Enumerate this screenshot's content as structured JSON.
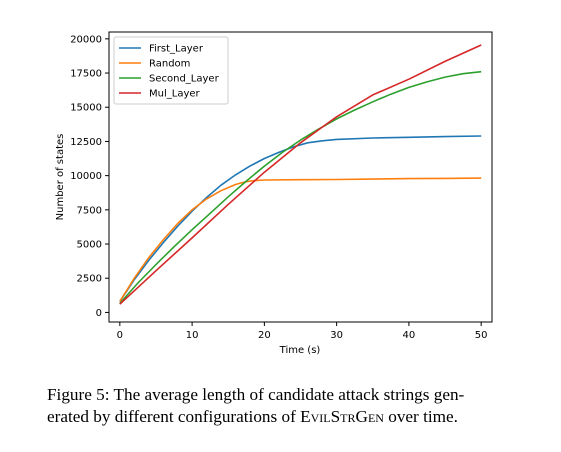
{
  "chart_data": {
    "type": "line",
    "title": "",
    "xlabel": "Time (s)",
    "ylabel": "Number of states",
    "xlim": [
      -1.5,
      51.5
    ],
    "ylim": [
      -700,
      20500
    ],
    "xticks": [
      0,
      10,
      20,
      30,
      40,
      50
    ],
    "yticks": [
      0,
      2500,
      5000,
      7500,
      10000,
      12500,
      15000,
      17500,
      20000
    ],
    "legend_position": "top-left",
    "grid": false,
    "series": [
      {
        "name": "First_Layer",
        "color": "#1f77b4",
        "x": [
          0,
          2,
          4,
          6,
          8,
          10,
          12,
          14,
          16,
          18,
          20,
          22,
          24,
          26,
          28,
          30,
          35,
          40,
          45,
          50
        ],
        "y": [
          800,
          2400,
          3800,
          5100,
          6300,
          7400,
          8400,
          9300,
          10050,
          10700,
          11250,
          11700,
          12100,
          12400,
          12550,
          12650,
          12750,
          12800,
          12850,
          12900
        ]
      },
      {
        "name": "Random",
        "color": "#ff7f0e",
        "x": [
          0,
          2,
          4,
          6,
          8,
          10,
          12,
          14,
          16,
          17,
          18,
          19,
          20,
          25,
          30,
          35,
          40,
          45,
          50
        ],
        "y": [
          800,
          2500,
          4000,
          5300,
          6500,
          7500,
          8300,
          8900,
          9350,
          9500,
          9600,
          9650,
          9680,
          9700,
          9720,
          9750,
          9780,
          9800,
          9820
        ]
      },
      {
        "name": "Second_Layer",
        "color": "#2ca02c",
        "x": [
          0,
          2.5,
          5,
          7.5,
          10,
          12.5,
          15,
          17.5,
          20,
          22.5,
          25,
          27.5,
          30,
          32.5,
          35,
          37.5,
          40,
          42.5,
          45,
          47.5,
          50
        ],
        "y": [
          650,
          2150,
          3500,
          4800,
          6050,
          7250,
          8450,
          9600,
          10700,
          11700,
          12600,
          13400,
          14150,
          14800,
          15400,
          15950,
          16450,
          16850,
          17200,
          17450,
          17600
        ]
      },
      {
        "name": "Mul_Layer",
        "color": "#d62728",
        "x": [
          0,
          5,
          10,
          15,
          20,
          25,
          30,
          35,
          40,
          45,
          50
        ],
        "y": [
          600,
          3050,
          5450,
          7900,
          10250,
          12400,
          14300,
          15900,
          17050,
          18350,
          19550
        ]
      }
    ]
  },
  "caption": {
    "line1": "Figure 5: The average length of candidate attack strings gen-",
    "line2_a": "erated by different configurations of E",
    "line2_b": "vil",
    "line2_c": "S",
    "line2_d": "tr",
    "line2_e": "G",
    "line2_f": "en",
    "line2_g": " over time."
  }
}
